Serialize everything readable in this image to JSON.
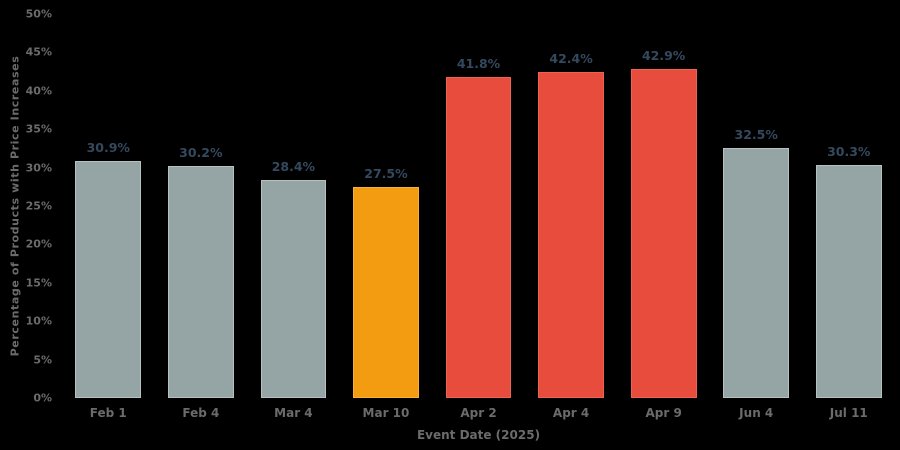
{
  "chart_data": {
    "type": "bar",
    "title": "",
    "xlabel": "Event Date (2025)",
    "ylabel": "Percentage of Products with Price Increases",
    "categories": [
      "Feb 1",
      "Feb 4",
      "Mar 4",
      "Mar 10",
      "Apr 2",
      "Apr 4",
      "Apr 9",
      "Jun 4",
      "Jul 11"
    ],
    "values": [
      30.9,
      30.2,
      28.4,
      27.5,
      41.8,
      42.4,
      42.9,
      32.5,
      30.3
    ],
    "value_labels": [
      "30.9%",
      "30.2%",
      "28.4%",
      "27.5%",
      "41.8%",
      "42.4%",
      "42.9%",
      "32.5%",
      "30.3%"
    ],
    "bar_colors": [
      "#95a5a6",
      "#95a5a6",
      "#95a5a6",
      "#f39c12",
      "#e74c3c",
      "#e74c3c",
      "#e74c3c",
      "#95a5a6",
      "#95a5a6"
    ],
    "bar_edge_colors": [
      "#b7c2c0",
      "#b7c2c0",
      "#b7c2c0",
      "#f7b133",
      "#ec6352",
      "#ec6352",
      "#ec6352",
      "#b7c2c0",
      "#b7c2c0"
    ],
    "ylim": [
      0,
      50
    ],
    "ytick_step": 5,
    "ytick_labels": [
      "0%",
      "5%",
      "10%",
      "15%",
      "20%",
      "25%",
      "30%",
      "35%",
      "40%",
      "45%",
      "50%"
    ],
    "grid": false,
    "legend": false,
    "background": "#000000",
    "value_label_color": "#34495e",
    "tick_label_color": "#6b6b6b"
  }
}
